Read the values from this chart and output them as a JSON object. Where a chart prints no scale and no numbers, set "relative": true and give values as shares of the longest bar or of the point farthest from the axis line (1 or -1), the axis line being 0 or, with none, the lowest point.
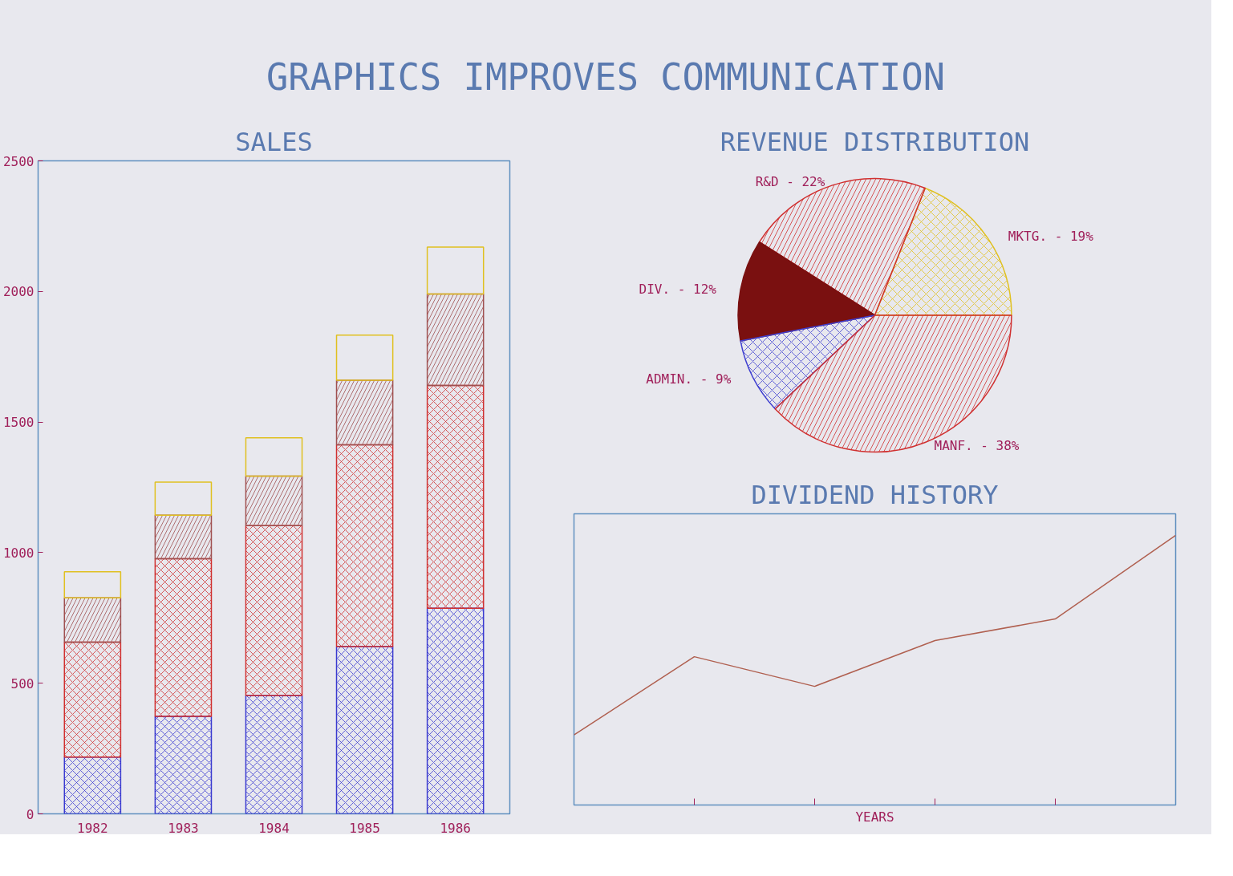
{
  "chart_data": [
    {
      "type": "other",
      "title": "GRAPHICS IMPROVES COMMUNICATION"
    },
    {
      "type": "bar",
      "title": "SALES",
      "categories": [
        "1982",
        "1983",
        "1984",
        "1985",
        "1986"
      ],
      "stacked": true,
      "ylim": [
        0,
        2500
      ],
      "yticks": [
        0,
        500,
        1000,
        1500,
        2000,
        2500
      ],
      "grid": false,
      "series": [
        {
          "color": "#3a3ad0",
          "values": [
            217,
            373,
            453,
            640,
            787
          ]
        },
        {
          "color": "#d03030",
          "values": [
            440,
            604,
            650,
            773,
            853
          ]
        },
        {
          "color": "#a05050",
          "values": [
            170,
            166,
            190,
            247,
            350
          ]
        },
        {
          "color": "#e0c020",
          "values": [
            100,
            127,
            147,
            173,
            180
          ]
        }
      ]
    },
    {
      "type": "pie",
      "title": "REVENUE DISTRIBUTION",
      "categories": [
        "MKTG. - 19%",
        "R&D - 22%",
        "DIV. - 12%",
        "ADMIN. - 9%",
        "MANF. - 38%"
      ],
      "values": [
        19,
        22,
        12,
        9,
        38
      ],
      "colors": [
        "#e0c020",
        "#d03030",
        "#7a1010",
        "#4040d0",
        "#d03030"
      ]
    },
    {
      "type": "line",
      "title": "DIVIDEND HISTORY",
      "xlabel": "YEARS",
      "categories": [
        null,
        null,
        null,
        null,
        null,
        null
      ],
      "relative": true,
      "grid": false,
      "marker": "none",
      "line_style": "solid",
      "series": [
        {
          "color": "#b06050",
          "values": [
            0.26,
            0.55,
            0.44,
            0.61,
            0.69,
            1.0
          ]
        }
      ]
    }
  ]
}
